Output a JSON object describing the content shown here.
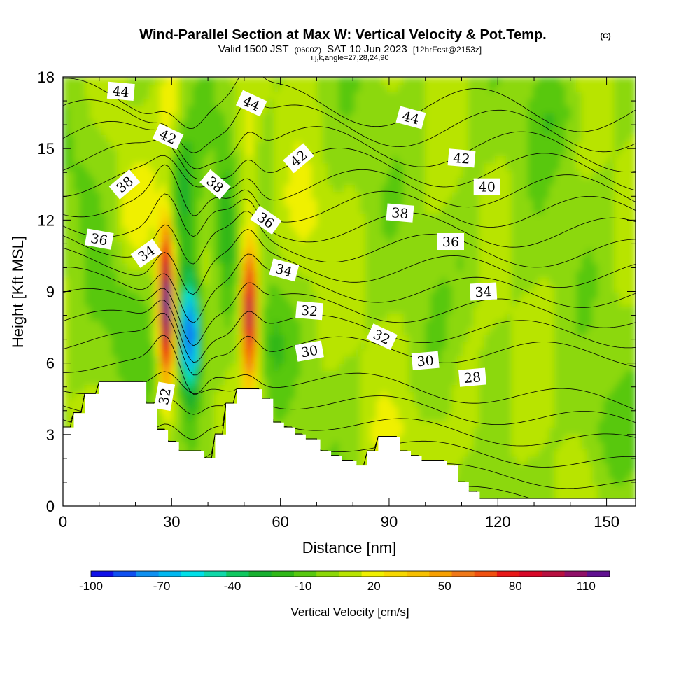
{
  "chart_data": {
    "type": "heatmap",
    "title": "Wind-Parallel Section at Max W: Vertical Velocity & Pot.Temp.",
    "title_mark": "(C)",
    "subtitle": {
      "valid": "Valid 1500 JST",
      "zulu": "(0600Z)",
      "date": "SAT 10 Jun 2023",
      "forecast": "[12hrFcst@2153z]",
      "indices": "i,j,k,angle=27,28,24,90"
    },
    "xlabel": "Distance [nm]",
    "ylabel": "Height [Kft MSL]",
    "xlim": [
      0,
      158
    ],
    "ylim": [
      0,
      18
    ],
    "x_ticks": [
      0,
      30,
      60,
      90,
      120,
      150
    ],
    "y_ticks": [
      0,
      3,
      6,
      9,
      12,
      15,
      18
    ],
    "grid": false,
    "colorbar": {
      "label": "Vertical Velocity [cm/s]",
      "tick_labels": [
        -100,
        -70,
        -40,
        -10,
        20,
        50,
        80,
        110
      ],
      "levels": [
        -100,
        -90,
        -80,
        -70,
        -60,
        -50,
        -40,
        -30,
        -20,
        -10,
        0,
        10,
        20,
        30,
        40,
        50,
        60,
        70,
        80,
        90,
        100,
        110,
        120
      ],
      "colors": [
        "#1010e8",
        "#1050f0",
        "#1090f0",
        "#00b8f0",
        "#00e0e8",
        "#10d8a8",
        "#10c860",
        "#18b030",
        "#30b818",
        "#58c810",
        "#8cd808",
        "#b8e400",
        "#f0f000",
        "#f8d800",
        "#f8c000",
        "#f8a000",
        "#f07818",
        "#f05010",
        "#e81818",
        "#d80828",
        "#b81040",
        "#901068",
        "#601090"
      ]
    },
    "terrain_kft": [
      [
        0,
        3.3
      ],
      [
        3,
        3.3
      ],
      [
        3,
        3.9
      ],
      [
        6,
        3.9
      ],
      [
        6,
        4.7
      ],
      [
        10,
        4.7
      ],
      [
        10,
        5.2
      ],
      [
        23,
        5.2
      ],
      [
        23,
        4.3
      ],
      [
        26,
        4.3
      ],
      [
        26,
        3.2
      ],
      [
        29,
        3.2
      ],
      [
        29,
        2.7
      ],
      [
        32,
        2.7
      ],
      [
        32,
        2.3
      ],
      [
        39,
        2.3
      ],
      [
        39,
        2.0
      ],
      [
        42,
        2.0
      ],
      [
        42,
        3.0
      ],
      [
        45,
        3.0
      ],
      [
        45,
        4.3
      ],
      [
        48,
        4.3
      ],
      [
        48,
        4.9
      ],
      [
        55,
        4.9
      ],
      [
        55,
        4.5
      ],
      [
        58,
        4.5
      ],
      [
        58,
        3.5
      ],
      [
        61,
        3.5
      ],
      [
        61,
        3.3
      ],
      [
        64,
        3.3
      ],
      [
        64,
        3.0
      ],
      [
        67,
        3.0
      ],
      [
        67,
        2.8
      ],
      [
        71,
        2.8
      ],
      [
        71,
        2.3
      ],
      [
        74,
        2.3
      ],
      [
        74,
        2.1
      ],
      [
        77,
        2.1
      ],
      [
        77,
        1.9
      ],
      [
        81,
        1.9
      ],
      [
        81,
        1.7
      ],
      [
        84,
        1.7
      ],
      [
        84,
        2.3
      ],
      [
        87,
        2.3
      ],
      [
        87,
        2.9
      ],
      [
        93,
        2.9
      ],
      [
        93,
        2.3
      ],
      [
        96,
        2.3
      ],
      [
        96,
        2.1
      ],
      [
        99,
        2.1
      ],
      [
        99,
        1.9
      ],
      [
        106,
        1.9
      ],
      [
        106,
        1.7
      ],
      [
        109,
        1.7
      ],
      [
        109,
        1.0
      ],
      [
        112,
        1.0
      ],
      [
        112,
        0.6
      ],
      [
        115,
        0.6
      ],
      [
        115,
        0.3
      ],
      [
        158,
        0.3
      ]
    ],
    "isentrope_labels": [
      {
        "text": "44",
        "x": 16,
        "y": 17.4,
        "angle": 5
      },
      {
        "text": "44",
        "x": 52,
        "y": 16.9,
        "angle": 25
      },
      {
        "text": "44",
        "x": 96,
        "y": 16.3,
        "angle": 15
      },
      {
        "text": "42",
        "x": 29,
        "y": 15.5,
        "angle": 25
      },
      {
        "text": "42",
        "x": 65,
        "y": 14.6,
        "angle": -40
      },
      {
        "text": "42",
        "x": 110,
        "y": 14.6,
        "angle": 5
      },
      {
        "text": "40",
        "x": 117,
        "y": 13.4,
        "angle": 0
      },
      {
        "text": "38",
        "x": 17,
        "y": 13.5,
        "angle": -40
      },
      {
        "text": "38",
        "x": 42,
        "y": 13.5,
        "angle": 40
      },
      {
        "text": "38",
        "x": 93,
        "y": 12.3,
        "angle": 5
      },
      {
        "text": "36",
        "x": 10,
        "y": 11.2,
        "angle": 10
      },
      {
        "text": "36",
        "x": 56,
        "y": 12.0,
        "angle": 35
      },
      {
        "text": "36",
        "x": 107,
        "y": 11.1,
        "angle": 0
      },
      {
        "text": "34",
        "x": 23,
        "y": 10.6,
        "angle": -35
      },
      {
        "text": "34",
        "x": 61,
        "y": 9.9,
        "angle": 15
      },
      {
        "text": "34",
        "x": 116,
        "y": 9.0,
        "angle": -3
      },
      {
        "text": "32",
        "x": 68,
        "y": 8.2,
        "angle": 5
      },
      {
        "text": "32",
        "x": 88,
        "y": 7.1,
        "angle": 25
      },
      {
        "text": "32",
        "x": 28,
        "y": 4.6,
        "angle": -80
      },
      {
        "text": "30",
        "x": 68,
        "y": 6.5,
        "angle": -10
      },
      {
        "text": "30",
        "x": 100,
        "y": 6.1,
        "angle": -5
      },
      {
        "text": "28",
        "x": 113,
        "y": 5.4,
        "angle": -5
      }
    ],
    "isentrope_levels_K": [
      26,
      27,
      28,
      29,
      30,
      31,
      32,
      33,
      34,
      35,
      36,
      37,
      38,
      39,
      40,
      41,
      42,
      43,
      44,
      45,
      46
    ]
  }
}
